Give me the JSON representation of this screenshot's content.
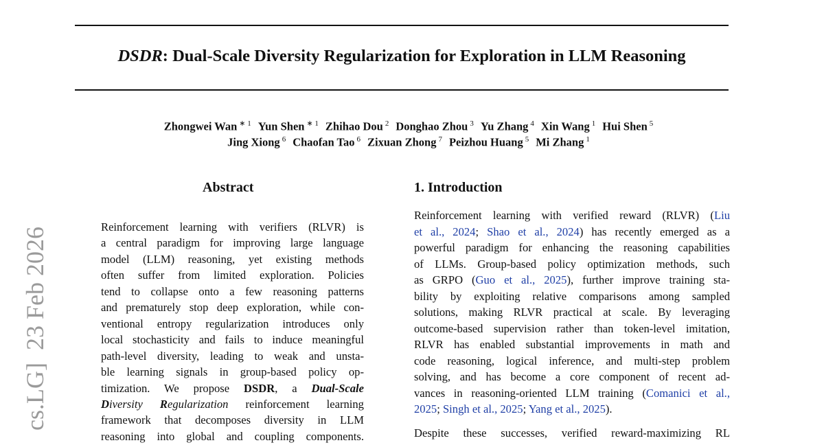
{
  "arxiv_stamp": "cs.LG]  23 Feb 2026",
  "title": [
    {
      "text": "DSDR",
      "style": "italic"
    },
    ": Dual-Scale Diversity Regularization for Exploration in LLM Reasoning"
  ],
  "author_lines": [
    [
      {
        "name": "Zhongwei Wan",
        "sup": "∗ 1"
      },
      {
        "name": "Yun Shen",
        "sup": "∗ 1"
      },
      {
        "name": "Zhihao Dou",
        "sup": "2"
      },
      {
        "name": "Donghao Zhou",
        "sup": "3"
      },
      {
        "name": "Yu Zhang",
        "sup": "4"
      },
      {
        "name": "Xin Wang",
        "sup": "1"
      },
      {
        "name": "Hui Shen",
        "sup": "5"
      }
    ],
    [
      {
        "name": "Jing Xiong",
        "sup": "6"
      },
      {
        "name": "Chaofan Tao",
        "sup": "6"
      },
      {
        "name": "Zixuan Zhong",
        "sup": "7"
      },
      {
        "name": "Peizhou Huang",
        "sup": "5"
      },
      {
        "name": "Mi Zhang",
        "sup": "1"
      }
    ]
  ],
  "abstract": {
    "heading": "Abstract",
    "lines": [
      [
        "Reinforcement learning with verifiers (RLVR) is"
      ],
      [
        "a central paradigm for improving large language"
      ],
      [
        "model (LLM) reasoning, yet existing methods"
      ],
      [
        "often suffer from limited exploration.  Policies"
      ],
      [
        "tend to collapse onto a few reasoning patterns"
      ],
      [
        "and prematurely stop deep exploration, while con-"
      ],
      [
        "ventional entropy regularization introduces only"
      ],
      [
        "local stochasticity and fails to induce meaningful"
      ],
      [
        "path-level diversity, leading to weak and unsta-"
      ],
      [
        "ble learning signals in group-based policy op-"
      ],
      [
        "timization.  We propose ",
        {
          "text": "DSDR",
          "style": "bold"
        },
        ", a ",
        {
          "text": "Dual-Scale",
          "style": "bold-italic"
        }
      ],
      [
        {
          "text": "D",
          "style": "bold-italic"
        },
        {
          "text": "iversity ",
          "style": "italic"
        },
        {
          "text": "R",
          "style": "bold-italic"
        },
        {
          "text": "egularization",
          "style": "italic"
        },
        " reinforcement learning"
      ],
      [
        "framework that decomposes diversity in LLM"
      ],
      [
        "reasoning into global and coupling components."
      ]
    ]
  },
  "introduction": {
    "heading": "1. Introduction",
    "paragraphs": [
      [
        [
          "Reinforcement learning with verified reward (RLVR) (",
          {
            "text": "Liu",
            "style": "link"
          }
        ],
        [
          {
            "text": "et al., 2024",
            "style": "link"
          },
          "; ",
          {
            "text": "Shao et al., 2024",
            "style": "link"
          },
          ") has recently emerged as a"
        ],
        [
          "powerful paradigm for enhancing the reasoning capabilities"
        ],
        [
          "of LLMs. Group-based policy optimization methods, such"
        ],
        [
          "as GRPO (",
          {
            "text": "Guo et al., 2025",
            "style": "link"
          },
          "), further improve training sta-"
        ],
        [
          "bility by exploiting relative comparisons among sampled"
        ],
        [
          "solutions, making RLVR practical at scale. By leveraging"
        ],
        [
          "outcome-based supervision rather than token-level imitation,"
        ],
        [
          "RLVR has enabled substantial improvements in math and"
        ],
        [
          "code reasoning, logical inference, and multi-step problem"
        ],
        [
          "solving, and has become a core component of recent ad-"
        ],
        [
          "vances in reasoning-oriented LLM training (",
          {
            "text": "Comanici et al.,",
            "style": "link"
          }
        ],
        [
          {
            "text": "2025",
            "style": "link"
          },
          "; ",
          {
            "text": "Singh et al., 2025",
            "style": "link"
          },
          "; ",
          {
            "text": "Yang et al., 2025",
            "style": "link"
          },
          ")."
        ]
      ],
      [
        [
          "Despite these successes, verified reward-maximizing RL"
        ]
      ]
    ]
  }
}
